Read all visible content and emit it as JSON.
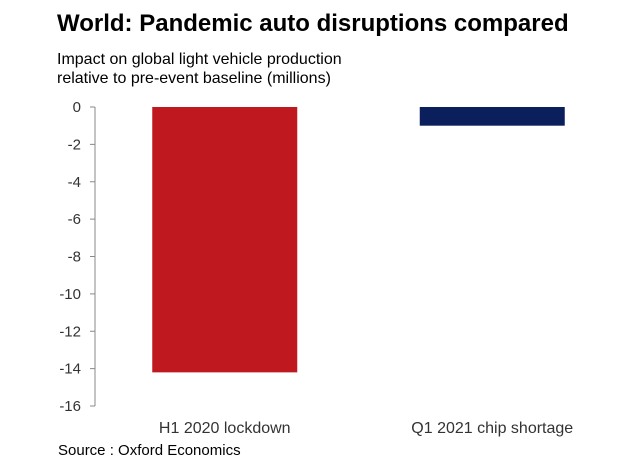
{
  "header": {
    "title": "World: Pandemic auto disruptions compared",
    "subtitle_line1": "Impact on global light vehicle production",
    "subtitle_line2": "relative to pre-event baseline (millions)"
  },
  "footer": {
    "source": "Source : Oxford Economics"
  },
  "chart_data": {
    "type": "bar",
    "title": "World: Pandemic auto disruptions compared",
    "ylabel": "Impact on global light vehicle production relative to pre-event baseline (millions)",
    "xlabel": "",
    "categories": [
      "H1 2020 lockdown",
      "Q1 2021 chip shortage"
    ],
    "values": [
      -14.2,
      -1.0
    ],
    "colors": [
      "#c0181f",
      "#0a1f5c"
    ],
    "ylim": [
      -16,
      0
    ],
    "yticks": [
      0,
      -2,
      -4,
      -6,
      -8,
      -10,
      -12,
      -14,
      -16
    ],
    "grid": false,
    "legend": "none"
  }
}
